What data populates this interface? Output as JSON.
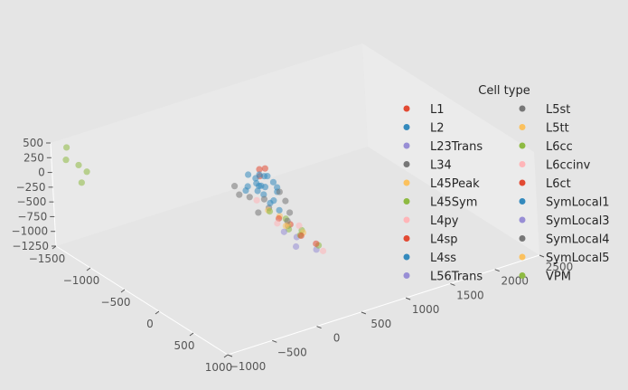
{
  "chart_data": {
    "type": "scatter",
    "projection": "3d",
    "title": "",
    "xlabel": "",
    "ylabel": "",
    "zlabel": "",
    "xlim": [
      -1500,
      1000
    ],
    "ylim": [
      -1000,
      2500
    ],
    "zlim": [
      -1250,
      500
    ],
    "x_ticks": [
      "−1500",
      "−1000",
      "−500",
      "0",
      "500",
      "1000"
    ],
    "y_ticks": [
      "−1000",
      "−500",
      "0",
      "500",
      "1000",
      "1500",
      "2000",
      "2500"
    ],
    "z_ticks": [
      "500",
      "250",
      "0",
      "−250",
      "−500",
      "−750",
      "−1000",
      "−1250"
    ],
    "grid": true,
    "legend": {
      "title": "Cell type",
      "placement": "right",
      "columns": 2
    },
    "series": [
      {
        "name": "L1",
        "color": "#E24A33",
        "points": [
          [
            -150,
            300,
            420
          ],
          [
            -80,
            250,
            380
          ],
          [
            -200,
            400,
            350
          ]
        ]
      },
      {
        "name": "L2",
        "color": "#348ABD",
        "points": [
          [
            0,
            200,
            300
          ],
          [
            100,
            150,
            250
          ],
          [
            -100,
            250,
            200
          ],
          [
            50,
            300,
            350
          ],
          [
            -50,
            180,
            400
          ],
          [
            150,
            220,
            150
          ],
          [
            -150,
            350,
            280
          ],
          [
            80,
            100,
            320
          ],
          [
            20,
            260,
            450
          ],
          [
            -120,
            140,
            230
          ],
          [
            60,
            330,
            180
          ],
          [
            -30,
            50,
            270
          ],
          [
            130,
            280,
            330
          ],
          [
            -90,
            310,
            160
          ],
          [
            40,
            120,
            410
          ]
        ]
      },
      {
        "name": "L23Trans",
        "color": "#988ED5",
        "points": [
          [
            -50,
            600,
            -800
          ],
          [
            0,
            550,
            -900
          ]
        ]
      },
      {
        "name": "L34",
        "color": "#777777",
        "points": [
          [
            -200,
            100,
            50
          ],
          [
            -100,
            300,
            -50
          ],
          [
            100,
            200,
            0
          ],
          [
            0,
            400,
            100
          ],
          [
            -250,
            250,
            -100
          ],
          [
            150,
            350,
            80
          ]
        ]
      },
      {
        "name": "L45Peak",
        "color": "#FBC15E",
        "points": [
          [
            -50,
            300,
            -200
          ],
          [
            50,
            350,
            -250
          ]
        ]
      },
      {
        "name": "L45Sym",
        "color": "#8EBA42",
        "points": [
          [
            -300,
            500,
            -500
          ],
          [
            -200,
            600,
            -600
          ],
          [
            100,
            550,
            -550
          ]
        ]
      },
      {
        "name": "L4py",
        "color": "#FFB5B8",
        "points": [
          [
            -350,
            400,
            -300
          ],
          [
            200,
            450,
            -350
          ]
        ]
      },
      {
        "name": "L4sp",
        "color": "#E24A33",
        "points": [
          [
            -100,
            450,
            -450
          ],
          [
            0,
            500,
            -500
          ]
        ]
      },
      {
        "name": "L4ss",
        "color": "#348ABD",
        "points": [
          [
            50,
            350,
            -150
          ],
          [
            -150,
            400,
            -200
          ]
        ]
      },
      {
        "name": "L56Trans",
        "color": "#988ED5",
        "points": [
          [
            100,
            700,
            -950
          ]
        ]
      },
      {
        "name": "L5st",
        "color": "#777777",
        "points": [
          [
            -200,
            300,
            -350
          ],
          [
            100,
            400,
            -400
          ],
          [
            0,
            500,
            -300
          ]
        ]
      },
      {
        "name": "L5tt",
        "color": "#FBC15E",
        "points": [
          [
            -100,
            550,
            -600
          ],
          [
            50,
            600,
            -650
          ]
        ]
      },
      {
        "name": "L6cc",
        "color": "#8EBA42",
        "points": [
          [
            -300,
            700,
            -900
          ],
          [
            -200,
            750,
            -950
          ],
          [
            0,
            800,
            -1000
          ]
        ]
      },
      {
        "name": "L6ccinv",
        "color": "#FFB5B8",
        "points": [
          [
            -400,
            650,
            -850
          ],
          [
            200,
            700,
            -900
          ]
        ]
      },
      {
        "name": "L6ct",
        "color": "#E24A33",
        "points": [
          [
            -50,
            650,
            -800
          ],
          [
            100,
            700,
            -850
          ]
        ]
      },
      {
        "name": "SymLocal1",
        "color": "#348ABD",
        "points": [
          [
            -50,
            100,
            500
          ],
          [
            50,
            150,
            550
          ]
        ]
      },
      {
        "name": "SymLocal3",
        "color": "#988ED5",
        "points": [
          [
            -100,
            500,
            -700
          ]
        ]
      },
      {
        "name": "SymLocal4",
        "color": "#777777",
        "points": [
          [
            -400,
            200,
            0
          ],
          [
            300,
            250,
            -100
          ]
        ]
      },
      {
        "name": "SymLocal5",
        "color": "#FBC15E",
        "points": [
          [
            0,
            450,
            -500
          ]
        ]
      },
      {
        "name": "VPM",
        "color": "#8EBA42",
        "points": [
          [
            -1400,
            -900,
            450
          ],
          [
            -1350,
            -950,
            300
          ],
          [
            -1300,
            -850,
            200
          ],
          [
            -1250,
            -800,
            100
          ],
          [
            -1200,
            -900,
            0
          ]
        ]
      }
    ]
  }
}
